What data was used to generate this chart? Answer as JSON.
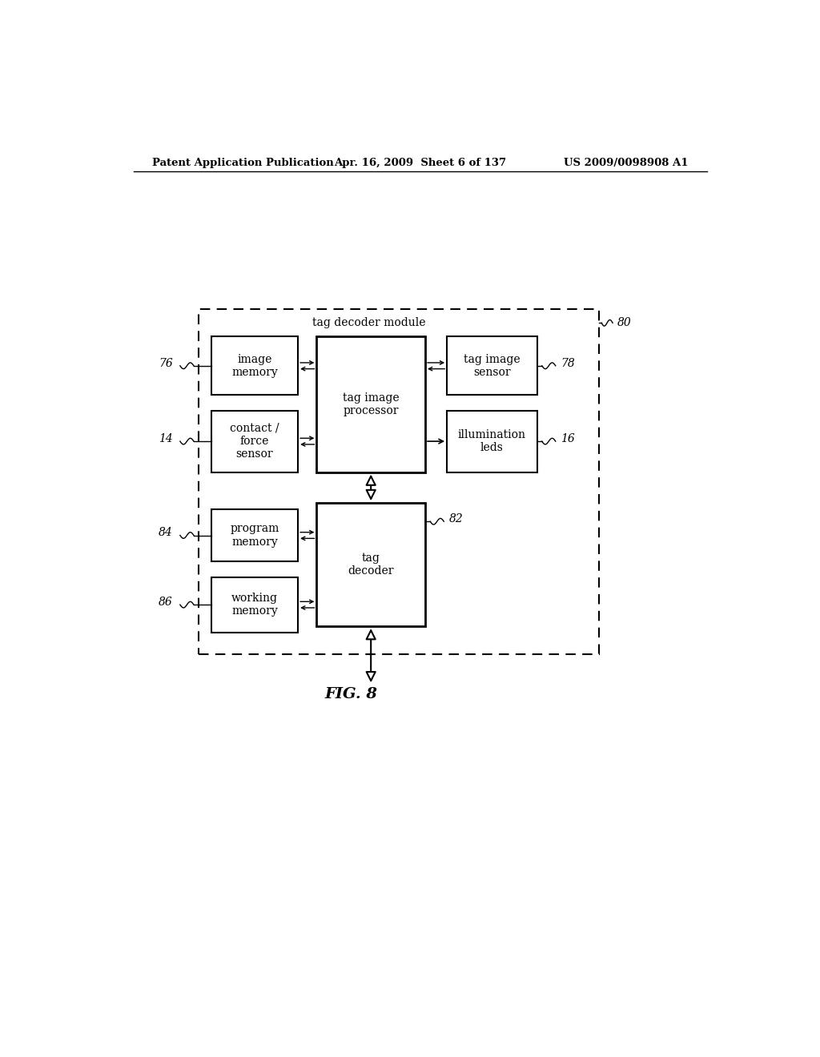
{
  "bg_color": "#ffffff",
  "header_left": "Patent Application Publication",
  "header_mid": "Apr. 16, 2009  Sheet 6 of 137",
  "header_right": "US 2009/0098908 A1",
  "fig_label": "FIG. 8",
  "module_label": "tag decoder module",
  "module_ref": "80"
}
